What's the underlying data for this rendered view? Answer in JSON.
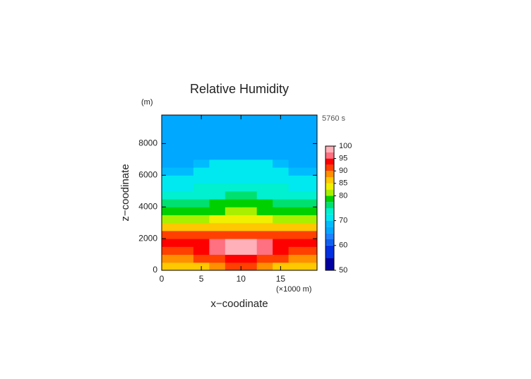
{
  "chart_data": {
    "type": "contour",
    "title": "Relative Humidity",
    "time_label": "5760 s",
    "y_unit": "(m)",
    "x_unit": "(×1000 m)",
    "x_label": "x−coodinate",
    "y_label": "z−coodinate",
    "xlim": [
      0,
      19.6
    ],
    "ylim": [
      0,
      9800
    ],
    "xticks": [
      0,
      5,
      10,
      15
    ],
    "yticks": [
      0,
      2000,
      4000,
      6000,
      8000
    ],
    "x": [
      1,
      3,
      5,
      7,
      9,
      11,
      13,
      15,
      17,
      19
    ],
    "z": [
      250,
      750,
      1250,
      1750,
      2250,
      2750,
      3250,
      3750,
      4250,
      4750,
      5250,
      5750,
      6250,
      6750,
      7250,
      7750,
      8250,
      8750,
      9250,
      9750
    ],
    "values": [
      [
        86,
        86,
        87,
        88,
        90,
        90,
        88,
        87,
        86,
        86
      ],
      [
        89,
        89,
        90,
        92,
        94,
        94,
        92,
        90,
        89,
        89
      ],
      [
        92,
        92,
        93,
        96,
        98.5,
        98.5,
        96,
        93,
        92,
        92
      ],
      [
        93,
        93,
        94,
        96,
        98,
        98,
        96,
        94,
        93,
        93
      ],
      [
        90,
        90,
        90.5,
        91,
        91,
        91,
        91,
        90.5,
        90,
        90
      ],
      [
        86,
        86,
        86,
        86.5,
        86.5,
        86.5,
        86.5,
        86,
        86,
        86
      ],
      [
        82,
        82,
        82,
        83,
        83,
        83,
        83,
        82,
        82,
        82
      ],
      [
        79,
        79,
        79,
        79.5,
        80,
        80,
        79.5,
        79,
        79,
        79
      ],
      [
        77,
        77,
        77,
        77.5,
        78,
        78,
        77.5,
        77,
        77,
        77
      ],
      [
        74,
        74,
        74,
        74.5,
        75,
        75,
        74.5,
        74,
        74,
        74
      ],
      [
        72,
        72,
        72.5,
        73,
        73,
        73,
        73,
        72.5,
        72,
        72
      ],
      [
        71,
        71,
        71.5,
        72,
        72,
        72,
        72,
        71.5,
        71,
        71
      ],
      [
        69,
        69.5,
        71,
        71,
        70.5,
        70.5,
        71,
        71,
        69.5,
        69
      ],
      [
        67,
        67,
        69,
        71,
        70,
        70,
        71,
        69,
        67,
        67
      ],
      [
        67,
        67,
        67,
        67,
        67,
        67,
        67,
        67,
        67,
        67
      ],
      [
        66.5,
        66.5,
        66.5,
        66.5,
        66.5,
        66.5,
        66.5,
        66.5,
        66.5,
        66.5
      ],
      [
        66,
        66,
        66,
        66,
        66,
        66,
        66,
        66,
        66,
        66
      ],
      [
        66,
        66,
        66,
        66,
        66,
        66,
        66,
        66,
        66,
        66
      ],
      [
        65.5,
        65.5,
        65.5,
        65.5,
        65.5,
        65.5,
        65.5,
        65.5,
        65.5,
        65.5
      ],
      [
        65.5,
        65.5,
        65.5,
        65.5,
        65.5,
        65.5,
        65.5,
        65.5,
        65.5,
        65.5
      ]
    ],
    "levels": [
      50,
      55,
      60,
      62.5,
      65,
      67.5,
      70,
      72.5,
      75,
      77.5,
      80,
      82.5,
      85,
      87.5,
      90,
      92.5,
      95,
      97.5,
      100
    ],
    "level_colors": [
      "#0000a0",
      "#0030e0",
      "#1060f0",
      "#2080ff",
      "#00a8ff",
      "#00bcff",
      "#00e8f0",
      "#00f0d0",
      "#00e070",
      "#00d000",
      "#a8f000",
      "#f0f000",
      "#ffc800",
      "#ff9000",
      "#ff4000",
      "#ff0000",
      "#ff7080",
      "#ffb0b8"
    ],
    "colorbar_ticks": [
      50,
      60,
      70,
      80,
      85,
      90,
      95,
      100
    ]
  }
}
